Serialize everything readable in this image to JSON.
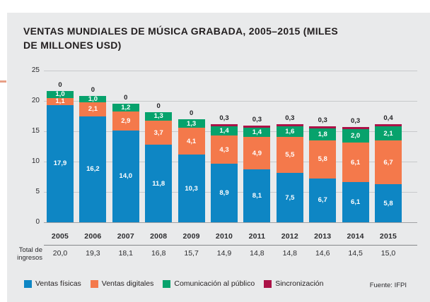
{
  "page": {
    "title_lines": [
      "VENTAS MUNDIALES DE MÚSICA GRABADA, 2005–2015 (MILES",
      "DE MILLONES USD)"
    ],
    "row_label": "Total de ingresos",
    "source_label": "Fuente: IFPI"
  },
  "colors": {
    "panel_background": "#e9eaeb",
    "ventas_fisicas": "#0e86c4",
    "ventas_digitales": "#f4794b",
    "comunicacion_al_publico": "#07a26c",
    "sincronizacion": "#ab1247",
    "gridline": "#c7c9cb",
    "text": "#231f20"
  },
  "chart_data": {
    "type": "bar",
    "stacked": true,
    "title": "VENTAS MUNDIALES DE MÚSICA GRABADA, 2005–2015 (MILES DE MILLONES USD)",
    "source": "Fuente: IFPI",
    "categories": [
      "2005",
      "2006",
      "2007",
      "2008",
      "2009",
      "2010",
      "2011",
      "2012",
      "2013",
      "2014",
      "2015"
    ],
    "series": [
      {
        "name": "Ventas físicas",
        "color": "#0e86c4",
        "values": [
          17.9,
          16.2,
          14.0,
          11.8,
          10.3,
          8.9,
          8.1,
          7.5,
          6.7,
          6.1,
          5.8
        ],
        "labels": [
          "17,9",
          "16,2",
          "14,0",
          "11,8",
          "10,3",
          "8,9",
          "8,1",
          "7,5",
          "6,7",
          "6,1",
          "5,8"
        ]
      },
      {
        "name": "Ventas digitales",
        "color": "#f4794b",
        "values": [
          1.1,
          2.1,
          2.9,
          3.7,
          4.1,
          4.3,
          4.9,
          5.5,
          5.8,
          6.1,
          6.7
        ],
        "labels": [
          "1,1",
          "2,1",
          "2,9",
          "3,7",
          "4,1",
          "4,3",
          "4,9",
          "5,5",
          "5,8",
          "6,1",
          "6,7"
        ]
      },
      {
        "name": "Comunicación al público",
        "color": "#07a26c",
        "values": [
          1.0,
          1.0,
          1.2,
          1.3,
          1.3,
          1.4,
          1.4,
          1.6,
          1.8,
          2.0,
          2.1
        ],
        "labels": [
          "1,0",
          "1,0",
          "1,2",
          "1,3",
          "1,3",
          "1,4",
          "1,4",
          "1,6",
          "1,8",
          "2,0",
          "2,1"
        ]
      },
      {
        "name": "Sincronización",
        "color": "#ab1247",
        "values": [
          0,
          0,
          0,
          0,
          0,
          0.3,
          0.3,
          0.3,
          0.3,
          0.3,
          0.4
        ],
        "labels": [
          "0",
          "0",
          "0",
          "0",
          "0",
          "0,3",
          "0,3",
          "0,3",
          "0,3",
          "0,3",
          "0,4"
        ]
      }
    ],
    "totals_row": {
      "label": "Total de ingresos",
      "values": [
        20.0,
        19.3,
        18.1,
        16.8,
        15.7,
        14.9,
        14.8,
        14.8,
        14.6,
        14.5,
        15.0
      ],
      "labels": [
        "20,0",
        "19,3",
        "18,1",
        "16,8",
        "15,7",
        "14,9",
        "14,8",
        "14,8",
        "14,6",
        "14,5",
        "15,0"
      ]
    },
    "axis": {
      "ticks": [
        0,
        5,
        10,
        15,
        20,
        25
      ],
      "ymax": 25,
      "grid": true,
      "legend_position": "bottom"
    },
    "ylabel": "",
    "xlabel": ""
  }
}
